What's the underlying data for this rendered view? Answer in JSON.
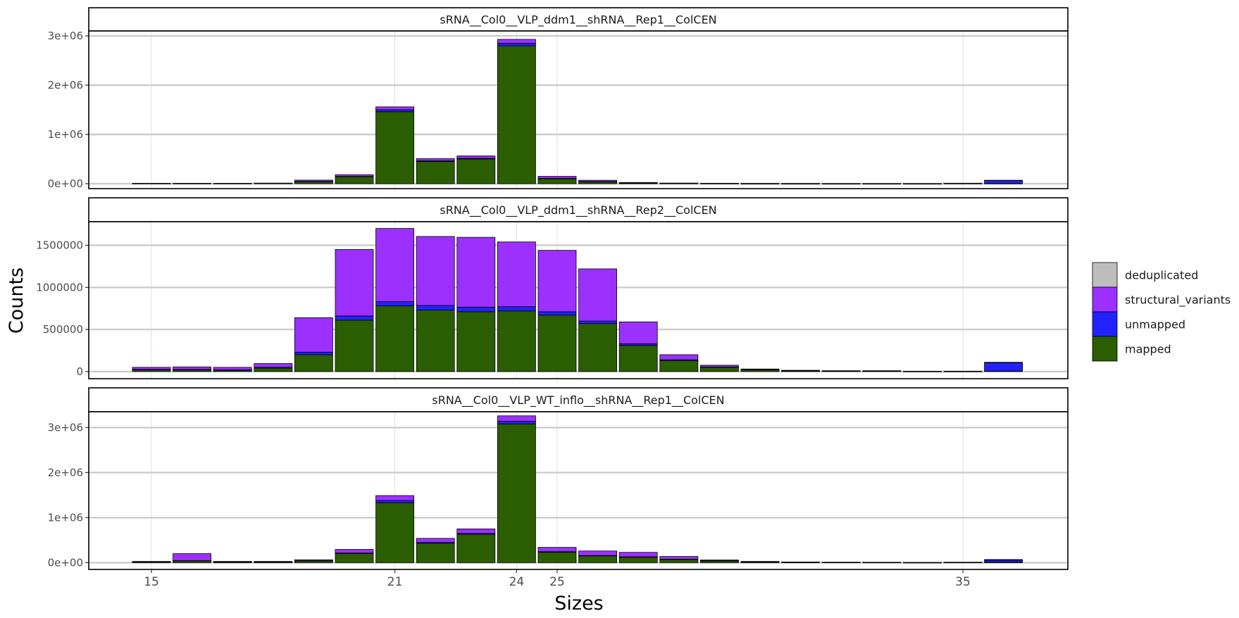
{
  "chart_data": {
    "type": "bar",
    "stacked": true,
    "xlabel": "Sizes",
    "ylabel": "Counts",
    "x": [
      15,
      16,
      17,
      18,
      19,
      20,
      21,
      22,
      23,
      24,
      25,
      26,
      27,
      28,
      29,
      30,
      31,
      32,
      33,
      34,
      35,
      36
    ],
    "x_ticks": [
      15,
      21,
      24,
      25,
      35
    ],
    "grid": true,
    "legend": {
      "position": "right",
      "entries": [
        "deduplicated",
        "structural_variants",
        "unmapped",
        "mapped"
      ]
    },
    "colors": {
      "deduplicated": "#bebebe",
      "structural_variants": "#9b30ff",
      "unmapped": "#2222ff",
      "mapped": "#2a5e00"
    },
    "panels": [
      {
        "title": "sRNA__Col0__VLP_ddm1__shRNA__Rep1__ColCEN",
        "ylim": [
          -100000,
          3100000
        ],
        "yticks": [
          0,
          1000000,
          2000000,
          3000000
        ],
        "ytick_labels": [
          "0e+00",
          "1e+06",
          "2e+06",
          "3e+06"
        ],
        "series": [
          {
            "name": "mapped",
            "values": [
              5000,
              5000,
              5000,
              8000,
              45000,
              140000,
              1460000,
              450000,
              500000,
              2800000,
              100000,
              40000,
              12000,
              6000,
              4000,
              2000,
              1500,
              1000,
              1000,
              1000,
              5000,
              5000
            ]
          },
          {
            "name": "unmapped",
            "values": [
              1000,
              1000,
              1000,
              1000,
              3000,
              8000,
              40000,
              15000,
              15000,
              50000,
              10000,
              5000,
              3000,
              2000,
              2000,
              1000,
              1000,
              1000,
              1000,
              1000,
              3000,
              60000
            ]
          },
          {
            "name": "structural_variants",
            "values": [
              2000,
              2000,
              2000,
              3000,
              25000,
              35000,
              60000,
              45000,
              50000,
              80000,
              40000,
              25000,
              10000,
              5000,
              3000,
              2000,
              1500,
              1000,
              1000,
              1000,
              2000,
              5000
            ]
          },
          {
            "name": "deduplicated",
            "values": [
              0,
              0,
              0,
              0,
              0,
              0,
              0,
              0,
              0,
              0,
              0,
              0,
              0,
              0,
              0,
              0,
              0,
              0,
              0,
              0,
              0,
              0
            ]
          }
        ]
      },
      {
        "title": "sRNA__Col0__VLP_ddm1__shRNA__Rep2__ColCEN",
        "ylim": [
          -85000,
          1780000
        ],
        "yticks": [
          0,
          500000,
          1000000,
          1500000
        ],
        "ytick_labels": [
          "0",
          "500000",
          "1000000",
          "1500000"
        ],
        "series": [
          {
            "name": "mapped",
            "values": [
              20000,
              20000,
              15000,
              40000,
              200000,
              610000,
              780000,
              730000,
              710000,
              720000,
              670000,
              570000,
              310000,
              130000,
              50000,
              20000,
              8000,
              5000,
              5000,
              1000,
              1000,
              5000
            ]
          },
          {
            "name": "unmapped",
            "values": [
              5000,
              5000,
              5000,
              10000,
              30000,
              50000,
              50000,
              55000,
              55000,
              50000,
              40000,
              30000,
              20000,
              10000,
              5000,
              3000,
              2000,
              2000,
              2000,
              1000,
              2000,
              100000
            ]
          },
          {
            "name": "structural_variants",
            "values": [
              25000,
              30000,
              30000,
              45000,
              410000,
              790000,
              870000,
              820000,
              830000,
              770000,
              730000,
              620000,
              260000,
              60000,
              20000,
              7000,
              5000,
              3000,
              3000,
              1000,
              1000,
              5000
            ]
          },
          {
            "name": "deduplicated",
            "values": [
              0,
              0,
              0,
              0,
              0,
              0,
              0,
              0,
              0,
              0,
              0,
              0,
              0,
              0,
              0,
              0,
              0,
              0,
              0,
              0,
              0,
              0
            ]
          }
        ]
      },
      {
        "title": "sRNA__Col0__VLP_WT_inflo__shRNA__Rep1__ColCEN",
        "ylim": [
          -150000,
          3350000
        ],
        "yticks": [
          0,
          1000000,
          2000000,
          3000000
        ],
        "ytick_labels": [
          "0e+00",
          "1e+06",
          "2e+06",
          "3e+06"
        ],
        "series": [
          {
            "name": "mapped",
            "values": [
              20000,
              40000,
              15000,
              15000,
              40000,
              200000,
              1330000,
              430000,
              630000,
              3080000,
              230000,
              150000,
              120000,
              70000,
              40000,
              15000,
              8000,
              5000,
              4000,
              2000,
              5000,
              15000
            ]
          },
          {
            "name": "unmapped",
            "values": [
              3000,
              5000,
              3000,
              3000,
              5000,
              15000,
              50000,
              20000,
              20000,
              60000,
              15000,
              10000,
              10000,
              8000,
              5000,
              3000,
              2000,
              2000,
              2000,
              1000,
              3000,
              40000
            ]
          },
          {
            "name": "structural_variants",
            "values": [
              5000,
              155000,
              10000,
              10000,
              20000,
              80000,
              110000,
              90000,
              100000,
              120000,
              95000,
              100000,
              100000,
              60000,
              15000,
              10000,
              6000,
              4000,
              3000,
              1000,
              2000,
              15000
            ]
          },
          {
            "name": "deduplicated",
            "values": [
              0,
              0,
              0,
              0,
              0,
              0,
              0,
              0,
              0,
              0,
              0,
              0,
              0,
              0,
              0,
              0,
              0,
              0,
              0,
              0,
              0,
              0
            ]
          }
        ]
      }
    ]
  }
}
